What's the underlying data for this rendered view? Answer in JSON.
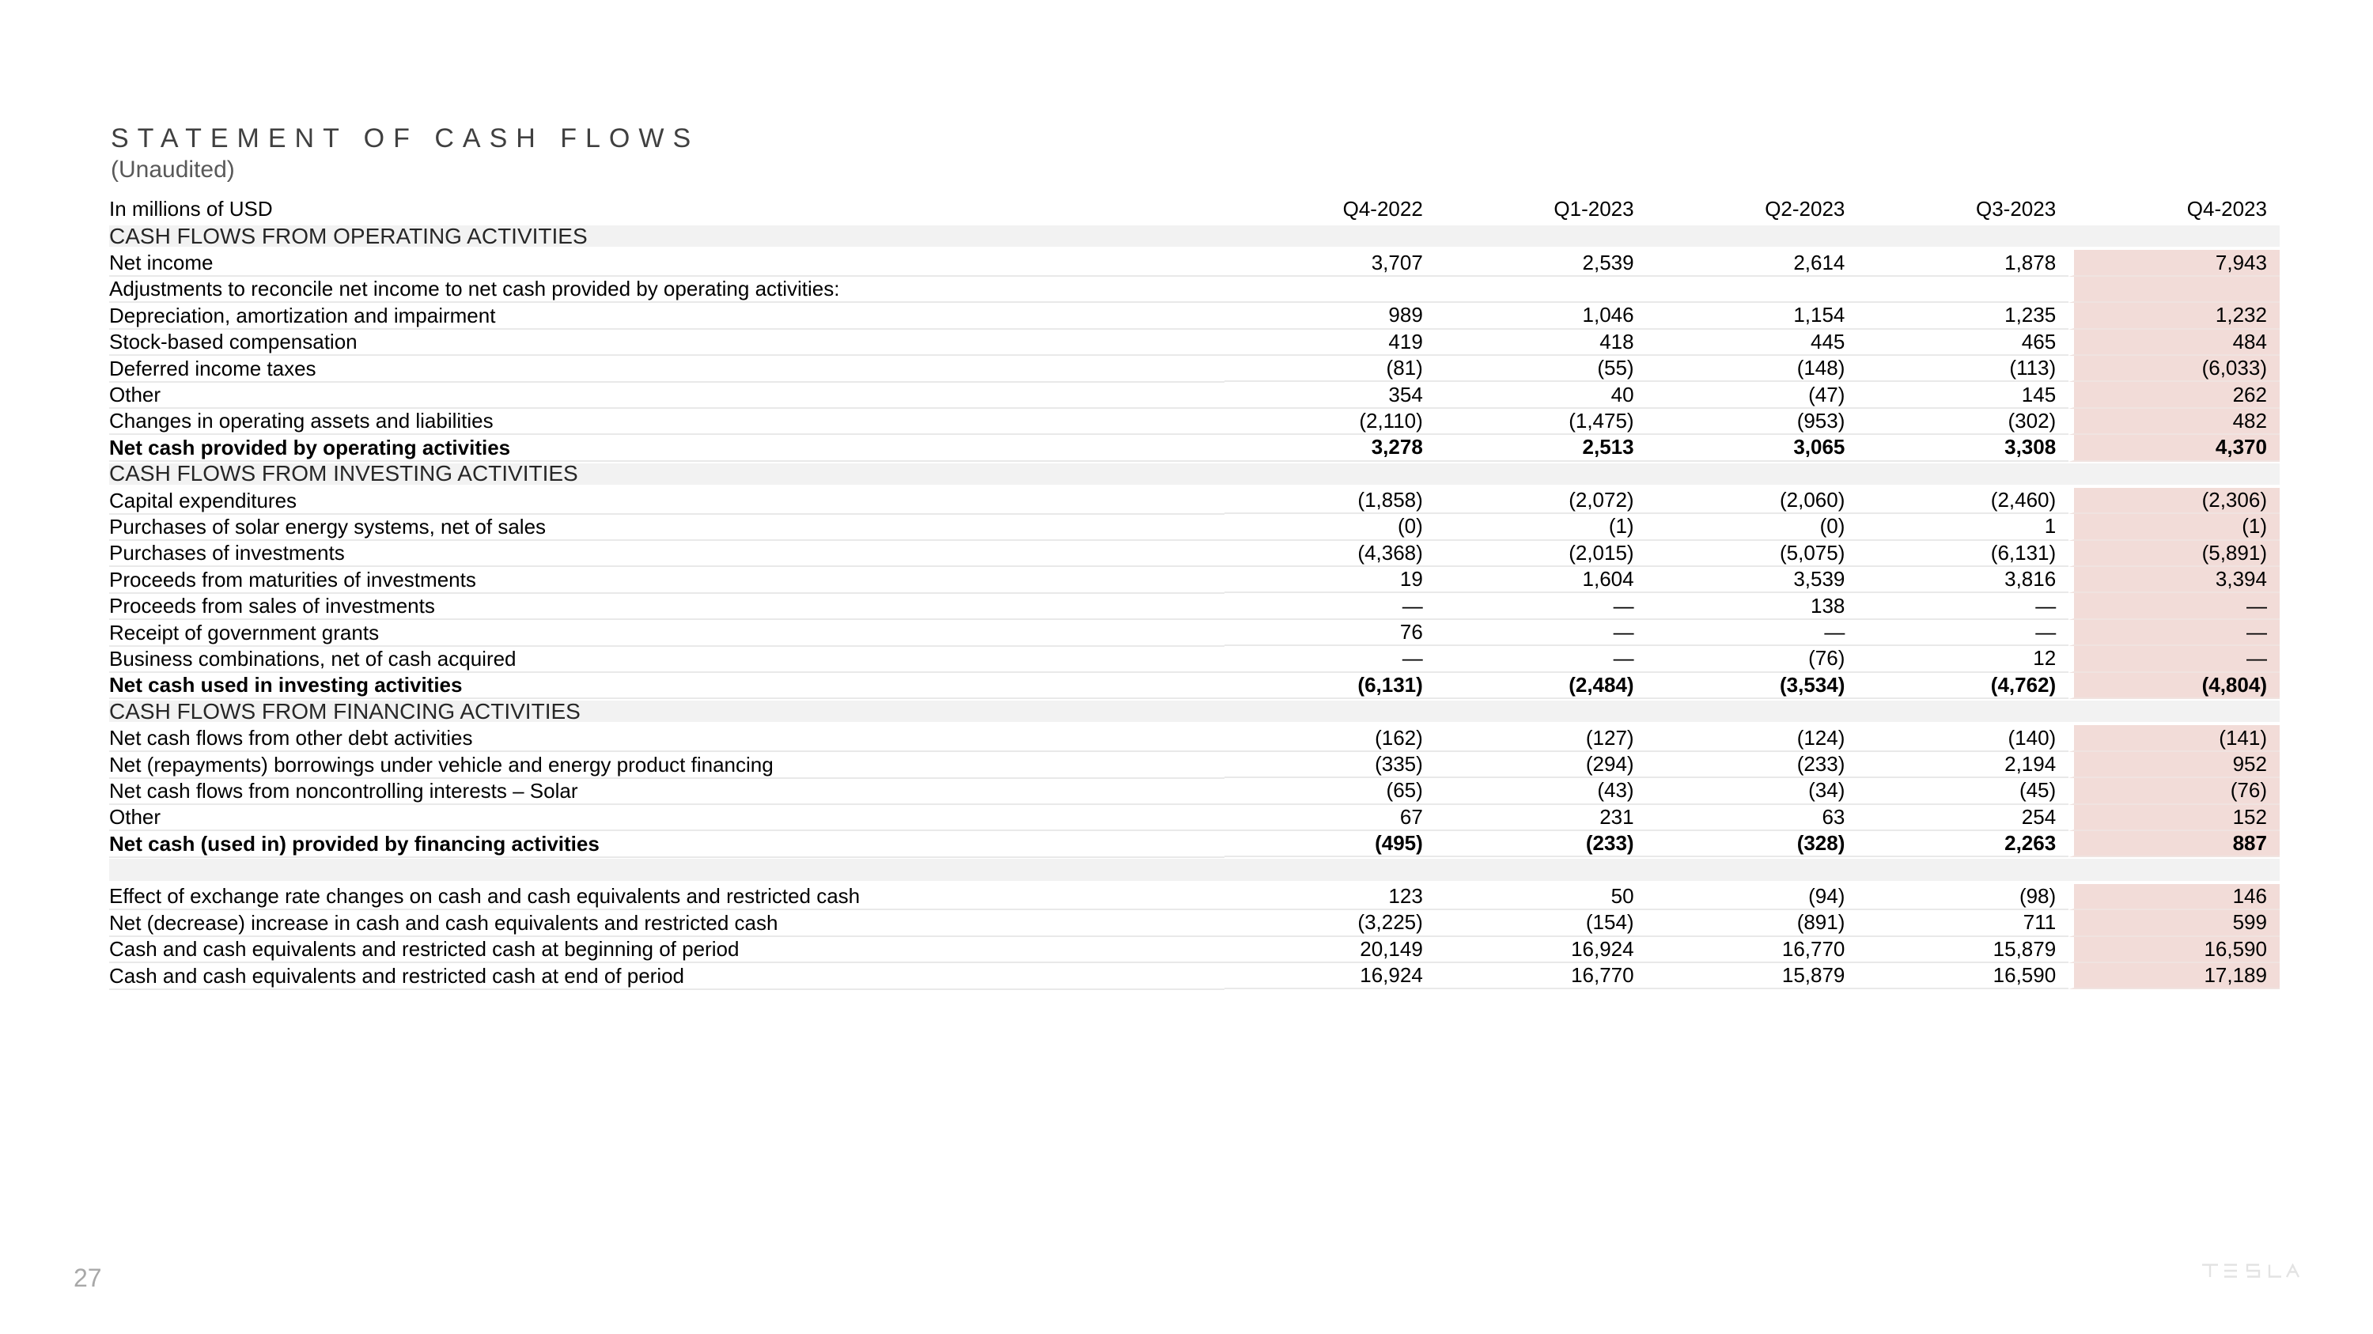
{
  "page": {
    "title": "STATEMENT OF CASH FLOWS",
    "subtitle": "(Unaudited)",
    "page_number": "27",
    "brand": "TESLA"
  },
  "colors": {
    "highlight_column": "#f2dcd8",
    "section_band": "#f2f2f2",
    "row_separator": "#e9e9e9"
  },
  "table": {
    "unit_label": "In millions of USD",
    "columns": [
      "Q4-2022",
      "Q1-2023",
      "Q2-2023",
      "Q3-2023",
      "Q4-2023"
    ],
    "highlighted_column": "Q4-2023",
    "rows": [
      {
        "type": "section",
        "label": "CASH FLOWS FROM OPERATING ACTIVITIES"
      },
      {
        "type": "data",
        "label": "Net income",
        "values": [
          "3,707",
          "2,539",
          "2,614",
          "1,878",
          "7,943"
        ]
      },
      {
        "type": "data",
        "label": "Adjustments to reconcile net income to net cash provided by operating activities:",
        "values": [
          "",
          "",
          "",
          "",
          ""
        ]
      },
      {
        "type": "data",
        "label": "Depreciation, amortization and impairment",
        "values": [
          "989",
          "1,046",
          "1,154",
          "1,235",
          "1,232"
        ]
      },
      {
        "type": "data",
        "label": "Stock-based compensation",
        "values": [
          "419",
          "418",
          "445",
          "465",
          "484"
        ]
      },
      {
        "type": "data",
        "label": "Deferred income taxes",
        "values": [
          "(81)",
          "(55)",
          "(148)",
          "(113)",
          "(6,033)"
        ]
      },
      {
        "type": "data",
        "label": "Other",
        "values": [
          "354",
          "40",
          "(47)",
          "145",
          "262"
        ]
      },
      {
        "type": "data",
        "label": "Changes in operating assets and liabilities",
        "values": [
          "(2,110)",
          "(1,475)",
          "(953)",
          "(302)",
          "482"
        ]
      },
      {
        "type": "total",
        "label": "Net cash provided by operating activities",
        "values": [
          "3,278",
          "2,513",
          "3,065",
          "3,308",
          "4,370"
        ]
      },
      {
        "type": "section",
        "label": "CASH FLOWS FROM INVESTING ACTIVITIES"
      },
      {
        "type": "data",
        "label": "Capital expenditures",
        "values": [
          "(1,858)",
          "(2,072)",
          "(2,060)",
          "(2,460)",
          "(2,306)"
        ]
      },
      {
        "type": "data",
        "label": "Purchases of solar energy systems, net of sales",
        "values": [
          "(0)",
          "(1)",
          "(0)",
          "1",
          "(1)"
        ]
      },
      {
        "type": "data",
        "label": "Purchases of investments",
        "values": [
          "(4,368)",
          "(2,015)",
          "(5,075)",
          "(6,131)",
          "(5,891)"
        ]
      },
      {
        "type": "data",
        "label": "Proceeds from maturities of investments",
        "values": [
          "19",
          "1,604",
          "3,539",
          "3,816",
          "3,394"
        ]
      },
      {
        "type": "data",
        "label": "Proceeds from sales of investments",
        "values": [
          "—",
          "—",
          "138",
          "—",
          "—"
        ]
      },
      {
        "type": "data",
        "label": "Receipt of government grants",
        "values": [
          "76",
          "—",
          "—",
          "—",
          "—"
        ]
      },
      {
        "type": "data",
        "label": "Business combinations, net of cash acquired",
        "values": [
          "—",
          "—",
          "(76)",
          "12",
          "—"
        ]
      },
      {
        "type": "total",
        "label": "Net cash used in investing activities",
        "values": [
          "(6,131)",
          "(2,484)",
          "(3,534)",
          "(4,762)",
          "(4,804)"
        ]
      },
      {
        "type": "section",
        "label": "CASH FLOWS FROM FINANCING ACTIVITIES"
      },
      {
        "type": "data",
        "label": "Net cash flows from other debt activities",
        "values": [
          "(162)",
          "(127)",
          "(124)",
          "(140)",
          "(141)"
        ]
      },
      {
        "type": "data",
        "label": "Net (repayments) borrowings under vehicle and energy product financing",
        "values": [
          "(335)",
          "(294)",
          "(233)",
          "2,194",
          "952"
        ]
      },
      {
        "type": "data",
        "label": "Net cash flows from noncontrolling interests – Solar",
        "values": [
          "(65)",
          "(43)",
          "(34)",
          "(45)",
          "(76)"
        ]
      },
      {
        "type": "data",
        "label": "Other",
        "values": [
          "67",
          "231",
          "63",
          "254",
          "152"
        ]
      },
      {
        "type": "total",
        "label": "Net cash (used in) provided by financing activities",
        "values": [
          "(495)",
          "(233)",
          "(328)",
          "2,263",
          "887"
        ]
      },
      {
        "type": "spacer"
      },
      {
        "type": "data",
        "label": "Effect of exchange rate changes on cash and cash equivalents and restricted cash",
        "values": [
          "123",
          "50",
          "(94)",
          "(98)",
          "146"
        ]
      },
      {
        "type": "data",
        "label": "Net (decrease) increase in cash and cash equivalents and restricted cash",
        "values": [
          "(3,225)",
          "(154)",
          "(891)",
          "711",
          "599"
        ]
      },
      {
        "type": "data",
        "label": "Cash and cash equivalents and restricted cash at beginning of period",
        "values": [
          "20,149",
          "16,924",
          "16,770",
          "15,879",
          "16,590"
        ]
      },
      {
        "type": "data",
        "label": "Cash and cash equivalents and restricted cash at end of period",
        "values": [
          "16,924",
          "16,770",
          "15,879",
          "16,590",
          "17,189"
        ]
      }
    ]
  }
}
